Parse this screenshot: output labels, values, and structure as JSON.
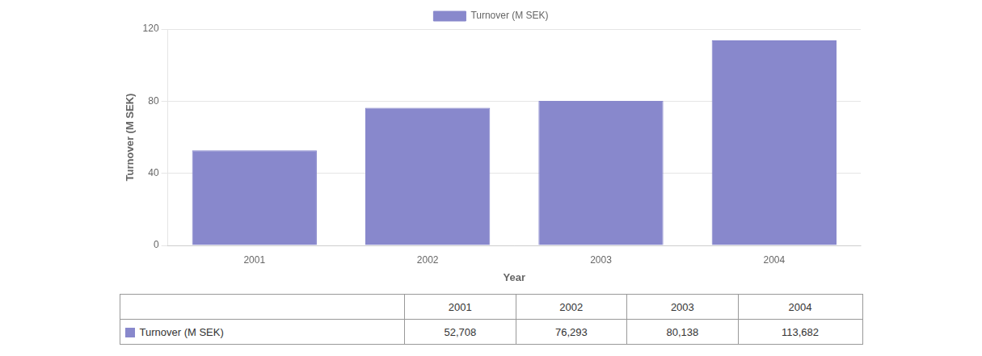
{
  "chart_data": {
    "type": "bar",
    "categories": [
      "2001",
      "2002",
      "2003",
      "2004"
    ],
    "series": [
      {
        "name": "Turnover (M SEK)",
        "color": "#8888cc",
        "values": [
          52.708,
          76.293,
          80.138,
          113.682
        ],
        "value_labels": [
          "52,708",
          "76,293",
          "80,138",
          "113,682"
        ]
      }
    ],
    "xlabel": "Year",
    "ylabel": "Turnover (M SEK)",
    "ylim": [
      0,
      120
    ],
    "yticks": [
      0,
      40,
      80,
      120
    ],
    "grid": true,
    "legend": "top"
  }
}
